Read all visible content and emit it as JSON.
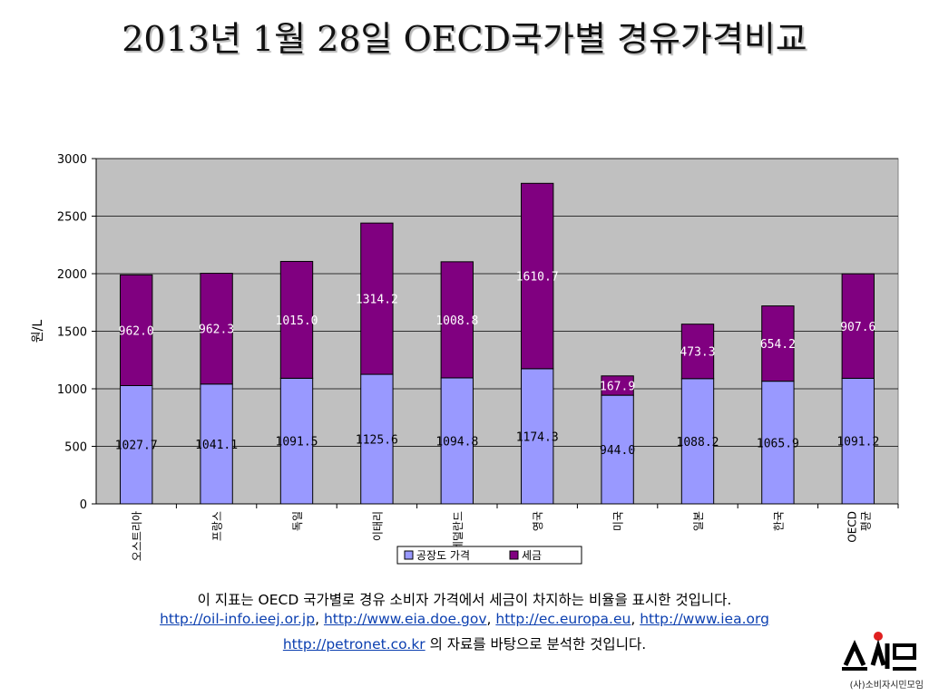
{
  "slide": {
    "title": "2013년 1월 28일 OECD국가별 경유가격비교"
  },
  "chart_data": {
    "type": "bar",
    "stacked": true,
    "categories": [
      "오스트리아",
      "프랑스",
      "독일",
      "이태리",
      "네덜란드",
      "영국",
      "미국",
      "일본",
      "한국",
      "OECD 평균"
    ],
    "series": [
      {
        "name": "공장도 가격",
        "color": "#9999ff",
        "values": [
          1027.7,
          1041.1,
          1091.5,
          1125.6,
          1094.8,
          1174.3,
          944.0,
          1088.2,
          1065.9,
          1091.2
        ]
      },
      {
        "name": "세금",
        "color": "#800080",
        "values": [
          962.0,
          962.3,
          1015.0,
          1314.2,
          1008.8,
          1610.7,
          167.9,
          473.3,
          654.2,
          907.6
        ]
      }
    ],
    "ylabel": "원/L",
    "ylim": [
      0,
      3000
    ],
    "yticks": [
      0,
      500,
      1000,
      1500,
      2000,
      2500,
      3000
    ],
    "grid": true,
    "legend": "bottom"
  },
  "footer": {
    "line1": "이 지표는 OECD 국가별로 경유 소비자 가격에서 세금이 차지하는 비율을 표시한 것입니다.",
    "link1": "http://oil-info.ieej.or.jp",
    "sep1": ", ",
    "link2": "http://www.eia.doe.gov",
    "sep2": ", ",
    "link3": "http://ec.europa.eu",
    "sep3": ", ",
    "link4": "http://www.iea.org",
    "link5": "http://petronet.co.kr",
    "line3_suffix": " 의 자료를 바탕으로 분석한 것입니다."
  },
  "logo": {
    "text": "(사)소비자시민모임"
  }
}
